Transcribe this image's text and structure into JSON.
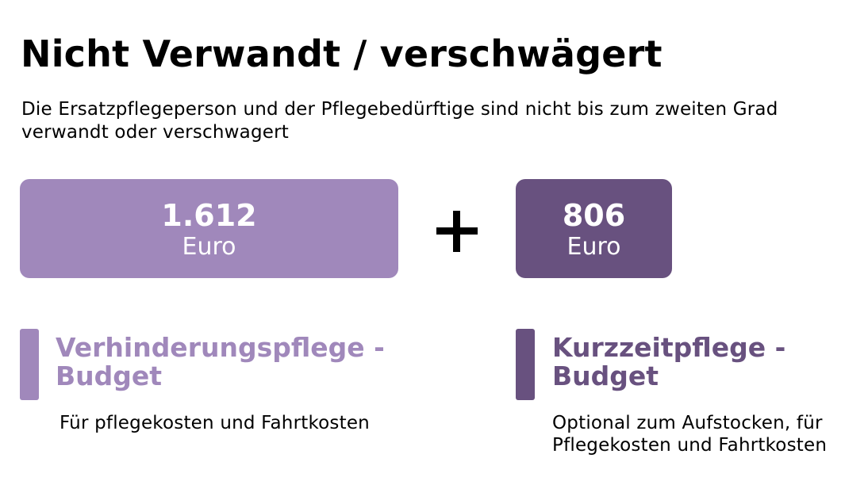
{
  "title": "Nicht Verwandt / verschwägert",
  "subtitle": "Die Ersatzpflegeperson und der Pflegebedürftige sind nicht bis zum zweiten Grad verwandt oder verschwagert",
  "colors": {
    "light_purple": "#a088bb",
    "dark_purple": "#68517f"
  },
  "budgets": [
    {
      "amount": "1.612",
      "unit": "Euro",
      "heading": "Verhinderungspflege - Budget",
      "description": "Für pflegekosten und Fahrtkosten"
    },
    {
      "amount": "806",
      "unit": "Euro",
      "heading": "Kurzzeitpflege - Budget",
      "description": "Optional zum Aufstocken, für Pflegekosten und Fahrtkosten"
    }
  ],
  "operator_icon": "plus-icon"
}
